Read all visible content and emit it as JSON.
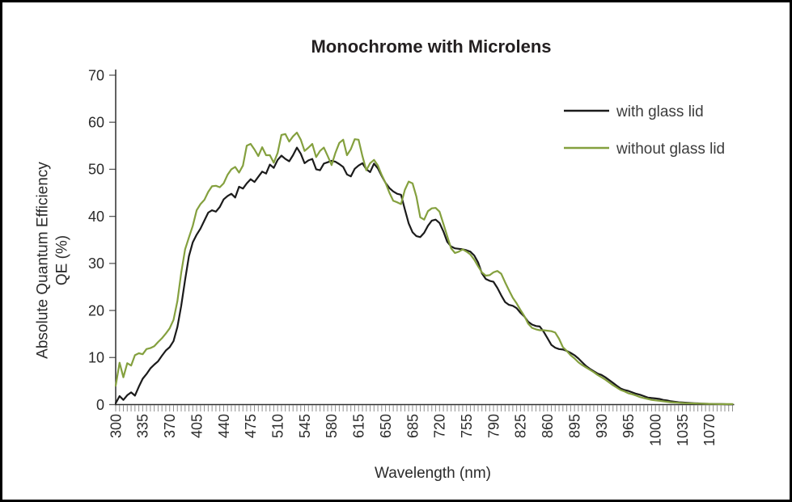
{
  "frame": {
    "border_color": "#000000",
    "background_color": "#ffffff"
  },
  "chart_data": {
    "type": "line",
    "title": "Monochrome with Microlens",
    "xlabel": "Wavelength (nm)",
    "ylabel": "Absolute Quantum Efficiency QE (%)",
    "ylabel_lines": [
      "Absolute Quantum Efficiency",
      "QE (%)"
    ],
    "xlim": [
      300,
      1100
    ],
    "ylim": [
      0,
      70
    ],
    "grid": false,
    "legend_position": "upper right",
    "x_tick_labels": [
      300,
      335,
      370,
      405,
      440,
      475,
      510,
      545,
      580,
      615,
      650,
      685,
      720,
      755,
      790,
      825,
      860,
      895,
      930,
      965,
      1000,
      1035,
      1070
    ],
    "x_minor_tick_step": 5,
    "y_ticks": [
      0,
      10,
      20,
      30,
      40,
      50,
      60,
      70
    ],
    "x": [
      300,
      305,
      310,
      315,
      320,
      325,
      330,
      335,
      340,
      345,
      350,
      355,
      360,
      365,
      370,
      375,
      380,
      385,
      390,
      395,
      400,
      405,
      410,
      415,
      420,
      425,
      430,
      435,
      440,
      445,
      450,
      455,
      460,
      465,
      470,
      475,
      480,
      485,
      490,
      495,
      500,
      505,
      510,
      515,
      520,
      525,
      530,
      535,
      540,
      545,
      550,
      555,
      560,
      565,
      570,
      575,
      580,
      585,
      590,
      595,
      600,
      605,
      610,
      615,
      620,
      625,
      630,
      635,
      640,
      645,
      650,
      655,
      660,
      665,
      670,
      675,
      680,
      685,
      690,
      695,
      700,
      705,
      710,
      715,
      720,
      725,
      730,
      735,
      740,
      745,
      750,
      755,
      760,
      765,
      770,
      775,
      780,
      785,
      790,
      795,
      800,
      805,
      810,
      815,
      820,
      825,
      830,
      835,
      840,
      845,
      850,
      855,
      860,
      865,
      870,
      875,
      880,
      885,
      890,
      895,
      900,
      905,
      910,
      915,
      920,
      925,
      930,
      935,
      940,
      945,
      950,
      955,
      960,
      965,
      970,
      975,
      980,
      985,
      990,
      995,
      1000,
      1005,
      1010,
      1015,
      1020,
      1025,
      1030,
      1035,
      1040,
      1045,
      1050,
      1055,
      1060,
      1065,
      1070,
      1075,
      1080,
      1085,
      1090,
      1095,
      1100
    ],
    "series": [
      {
        "name": "with glass lid",
        "color": "#1b1b1b",
        "values": [
          0.3,
          1.8,
          1.0,
          2.0,
          2.6,
          1.9,
          3.8,
          5.5,
          6.5,
          7.7,
          8.5,
          9.2,
          10.4,
          11.5,
          12.2,
          13.5,
          16.5,
          21.0,
          26.5,
          31.5,
          34.5,
          36.1,
          37.4,
          39.1,
          40.8,
          41.3,
          41.0,
          42.0,
          43.6,
          44.3,
          44.8,
          44.0,
          46.3,
          45.9,
          47.0,
          47.9,
          47.3,
          48.4,
          49.5,
          49.1,
          51.0,
          50.3,
          52.0,
          52.9,
          52.2,
          51.7,
          53.0,
          54.6,
          53.3,
          51.3,
          51.9,
          52.2,
          50.0,
          49.8,
          51.2,
          51.5,
          51.8,
          51.6,
          51.1,
          50.5,
          48.9,
          48.5,
          50.1,
          50.8,
          51.3,
          50.0,
          49.4,
          51.2,
          50.2,
          48.6,
          47.1,
          46.0,
          45.3,
          44.8,
          44.6,
          41.5,
          38.5,
          36.6,
          35.8,
          35.6,
          36.5,
          38.0,
          39.1,
          39.3,
          38.6,
          36.8,
          34.6,
          33.6,
          33.2,
          33.1,
          33.0,
          32.8,
          32.5,
          31.7,
          30.2,
          27.9,
          26.7,
          26.3,
          26.1,
          24.8,
          23.2,
          21.8,
          21.2,
          21.0,
          20.5,
          19.5,
          18.7,
          17.6,
          17.0,
          16.7,
          16.6,
          15.5,
          14.1,
          12.7,
          12.1,
          11.8,
          11.7,
          11.4,
          11.0,
          10.5,
          9.8,
          9.0,
          8.2,
          7.6,
          7.1,
          6.6,
          6.3,
          5.8,
          5.2,
          4.6,
          4.0,
          3.4,
          3.1,
          2.9,
          2.6,
          2.3,
          2.1,
          1.8,
          1.5,
          1.4,
          1.3,
          1.2,
          1.0,
          0.9,
          0.7,
          0.6,
          0.5,
          0.45,
          0.4,
          0.35,
          0.3,
          0.25,
          0.2,
          0.18,
          0.15,
          0.12,
          0.1,
          0.1,
          0.08,
          0.05,
          0.05
        ]
      },
      {
        "name": "without glass lid",
        "color": "#84a03e",
        "values": [
          4.0,
          8.9,
          5.8,
          8.8,
          8.3,
          10.5,
          10.9,
          10.7,
          11.8,
          12.0,
          12.4,
          13.3,
          14.1,
          15.1,
          16.2,
          18.0,
          22.0,
          28.0,
          33.0,
          35.5,
          38.0,
          41.3,
          42.6,
          43.5,
          45.2,
          46.4,
          46.5,
          46.2,
          47.0,
          48.8,
          50.0,
          50.5,
          49.3,
          50.8,
          55.0,
          55.4,
          54.2,
          52.8,
          54.7,
          53.0,
          53.0,
          51.4,
          53.5,
          57.3,
          57.5,
          55.9,
          57.0,
          57.8,
          56.3,
          53.9,
          54.6,
          55.4,
          52.6,
          53.9,
          54.6,
          52.8,
          50.9,
          53.5,
          55.6,
          56.3,
          53.0,
          54.3,
          56.4,
          56.3,
          52.8,
          49.8,
          51.3,
          52.0,
          50.8,
          48.8,
          47.1,
          45.0,
          43.3,
          43.0,
          42.6,
          45.6,
          47.4,
          47.0,
          44.2,
          39.8,
          39.3,
          41.1,
          41.7,
          41.8,
          41.0,
          38.4,
          35.8,
          33.2,
          32.2,
          32.5,
          33.0,
          32.5,
          31.9,
          30.8,
          29.4,
          28.1,
          27.4,
          27.5,
          28.1,
          28.4,
          27.8,
          26.0,
          24.3,
          22.7,
          21.5,
          20.1,
          18.8,
          17.2,
          16.3,
          16.0,
          15.8,
          15.8,
          15.7,
          15.6,
          15.3,
          14.0,
          12.2,
          11.4,
          10.5,
          9.8,
          9.0,
          8.4,
          7.9,
          7.4,
          6.9,
          6.3,
          5.8,
          5.3,
          4.7,
          4.1,
          3.6,
          3.1,
          2.8,
          2.4,
          2.2,
          1.9,
          1.6,
          1.4,
          1.2,
          1.0,
          0.9,
          0.8,
          0.7,
          0.6,
          0.5,
          0.45,
          0.4,
          0.35,
          0.3,
          0.28,
          0.25,
          0.22,
          0.2,
          0.18,
          0.15,
          0.13,
          0.12,
          0.1,
          0.1,
          0.1,
          0.1
        ]
      }
    ]
  }
}
